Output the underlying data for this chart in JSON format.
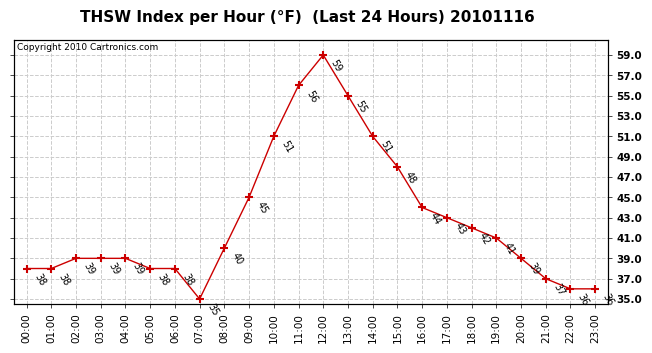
{
  "title": "THSW Index per Hour (°F)  (Last 24 Hours) 20101116",
  "copyright": "Copyright 2010 Cartronics.com",
  "x_labels": [
    "00:00",
    "01:00",
    "02:00",
    "03:00",
    "04:00",
    "05:00",
    "06:00",
    "07:00",
    "08:00",
    "09:00",
    "10:00",
    "11:00",
    "12:00",
    "13:00",
    "14:00",
    "15:00",
    "16:00",
    "17:00",
    "18:00",
    "19:00",
    "20:00",
    "21:00",
    "22:00",
    "23:00"
  ],
  "y_values": [
    38,
    38,
    39,
    39,
    39,
    38,
    38,
    35,
    40,
    45,
    51,
    56,
    59,
    55,
    51,
    48,
    44,
    43,
    42,
    41,
    39,
    37,
    36,
    36
  ],
  "y_tick_vals": [
    35,
    37,
    39,
    41,
    43,
    45,
    47,
    49,
    51,
    53,
    55,
    57,
    59
  ],
  "ylim": [
    34.5,
    60.5
  ],
  "line_color": "#cc0000",
  "marker": "+",
  "marker_size": 6,
  "marker_linewidth": 1.5,
  "grid_color": "#cccccc",
  "bg_color": "#ffffff",
  "title_fontsize": 11,
  "copyright_fontsize": 6.5,
  "annot_fontsize": 7,
  "tick_fontsize": 7.5
}
